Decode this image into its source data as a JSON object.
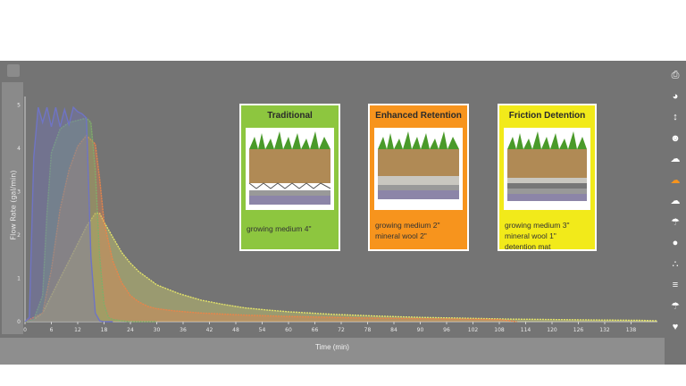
{
  "chart_data": {
    "type": "area",
    "ylabel": "Flow Rate (gal/min)",
    "xlabel": "Time (min)",
    "xlim": [
      0,
      144
    ],
    "ylim": [
      0,
      5.2
    ],
    "x_ticks": [
      0,
      6,
      12,
      18,
      24,
      30,
      36,
      42,
      48,
      54,
      60,
      66,
      72,
      78,
      84,
      90,
      96,
      102,
      108,
      114,
      120,
      126,
      132,
      138
    ],
    "y_ticks": [
      0,
      1,
      2,
      3,
      4,
      5
    ],
    "grid": false,
    "series": [
      {
        "color": "#6f74c4",
        "x": [
          0,
          1,
          2,
          3,
          4,
          5,
          6,
          7,
          8,
          9,
          10,
          11,
          12,
          13,
          14,
          15,
          16,
          17,
          18,
          20
        ],
        "y": [
          0,
          0.1,
          3.8,
          4.95,
          4.6,
          4.95,
          4.5,
          4.95,
          4.5,
          4.9,
          4.55,
          4.95,
          4.85,
          4.8,
          4.7,
          1.5,
          0.2,
          0.02,
          0,
          0
        ]
      },
      {
        "color": "#7fae6a",
        "x": [
          0,
          2,
          4,
          5,
          6,
          8,
          10,
          12,
          14,
          15,
          16,
          17,
          18,
          19,
          20,
          22,
          24,
          30
        ],
        "y": [
          0,
          0.05,
          0.6,
          2.5,
          3.9,
          4.45,
          4.6,
          4.65,
          4.7,
          4.6,
          3.5,
          1.5,
          0.4,
          0.1,
          0.05,
          0.02,
          0,
          0
        ]
      },
      {
        "color": "#e9844a",
        "x": [
          0,
          4,
          6,
          8,
          10,
          12,
          14,
          16,
          17,
          18,
          20,
          22,
          24,
          26,
          28,
          30,
          34,
          40,
          50,
          60,
          70,
          80,
          90,
          100,
          108,
          112
        ],
        "y": [
          0,
          0.2,
          1.2,
          2.6,
          3.5,
          4.05,
          4.3,
          4.1,
          3.3,
          2.3,
          1.4,
          0.9,
          0.6,
          0.45,
          0.35,
          0.3,
          0.25,
          0.2,
          0.15,
          0.12,
          0.1,
          0.08,
          0.07,
          0.06,
          0.05,
          0
        ]
      },
      {
        "color": "#e3e36a",
        "x": [
          0,
          2,
          4,
          6,
          8,
          10,
          12,
          14,
          16,
          17,
          18,
          20,
          22,
          24,
          26,
          28,
          30,
          35,
          40,
          45,
          50,
          55,
          60,
          70,
          80,
          90,
          100,
          110,
          120,
          130,
          140,
          144
        ],
        "y": [
          0,
          0.05,
          0.2,
          0.6,
          1.0,
          1.4,
          1.8,
          2.2,
          2.5,
          2.5,
          2.3,
          1.95,
          1.6,
          1.35,
          1.15,
          1.0,
          0.85,
          0.65,
          0.5,
          0.4,
          0.32,
          0.27,
          0.23,
          0.17,
          0.13,
          0.1,
          0.08,
          0.06,
          0.05,
          0.04,
          0.03,
          0.02
        ]
      }
    ]
  },
  "cards": [
    {
      "title": "Traditional",
      "text": "growing medium 4\"",
      "bg": "#8dc63f"
    },
    {
      "title": "Enhanced Retention",
      "text": "growing medium 2\"\nmineral wool 2\"",
      "bg": "#f7941d"
    },
    {
      "title": "Friction Detention",
      "text": "growing medium 3\"\nmineral wool 1\"\ndetention mat",
      "bg": "#f2ea1a"
    }
  ],
  "sidebar_icons": [
    "print-icon",
    "palette-icon",
    "vertical-arrows-icon",
    "face-icon",
    "cloud-icon",
    "cloud-orange-icon",
    "cloud-icon",
    "cloud-rain-icon",
    "drop-icon",
    "drops-icon",
    "level-icon",
    "cloud-rain-icon",
    "heart-icon"
  ]
}
